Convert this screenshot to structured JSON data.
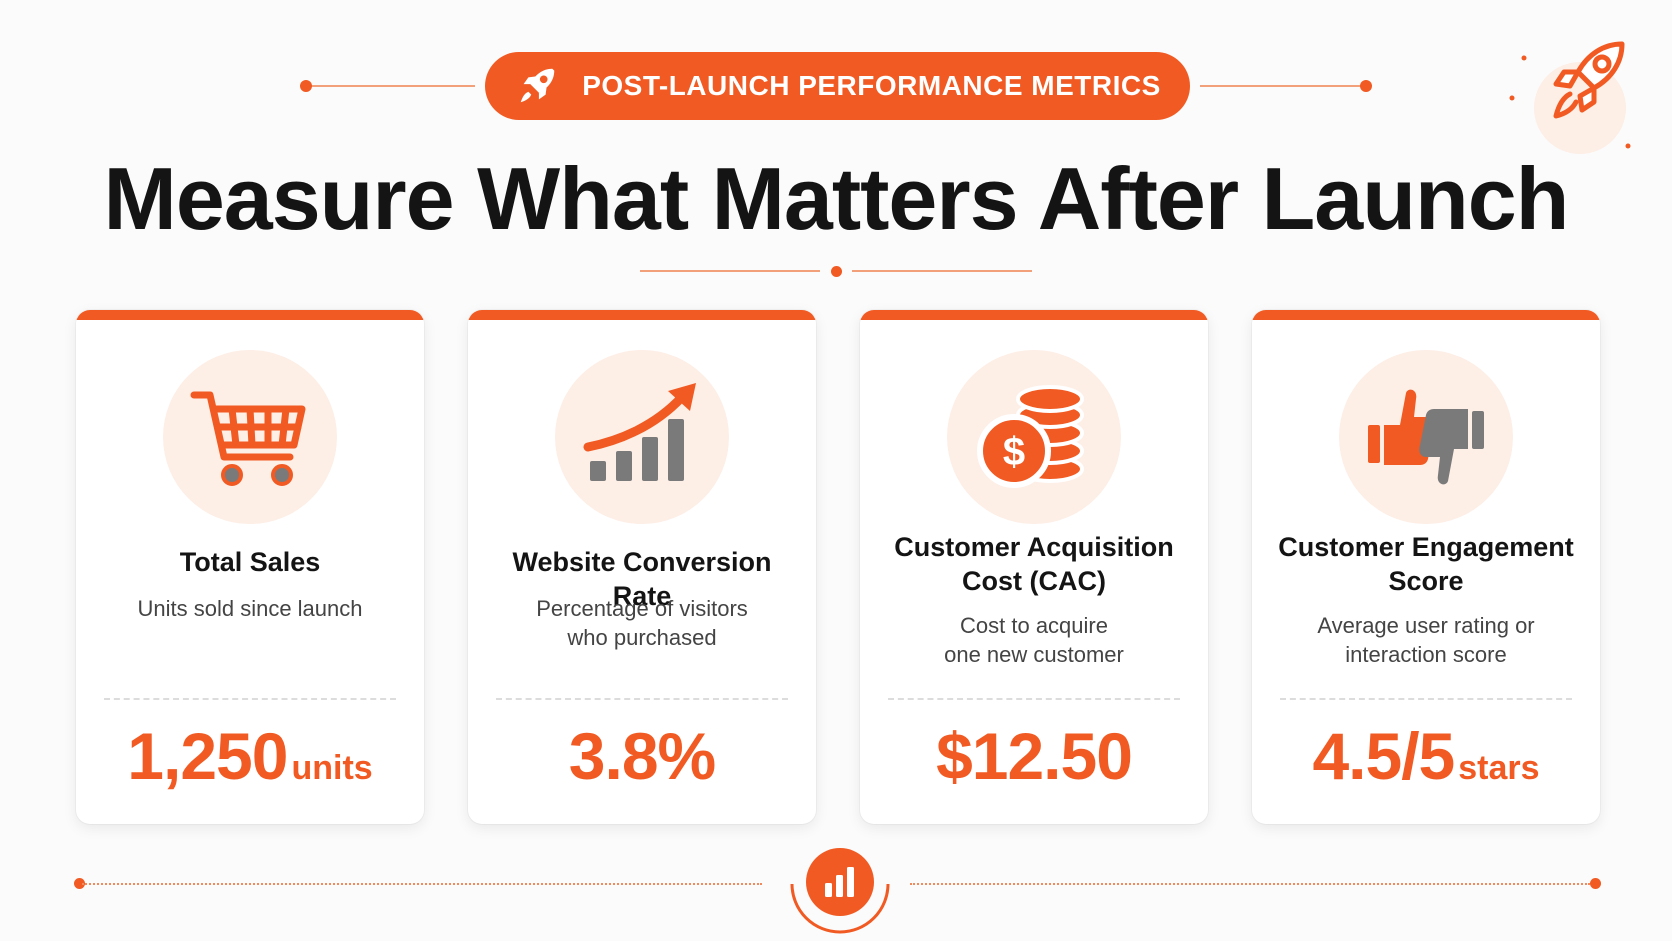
{
  "header": {
    "badge_label": "POST-LAUNCH PERFORMANCE METRICS",
    "title": "Measure What Matters After Launch"
  },
  "colors": {
    "accent": "#f15a22",
    "icon_bg": "#fdeee6",
    "icon_gray": "#7a7a7a",
    "title_text": "#141414"
  },
  "cards": [
    {
      "icon": "shopping-cart-icon",
      "title": "Total Sales",
      "description_lines": [
        "Units sold since launch"
      ],
      "value": "1,250",
      "unit": "units"
    },
    {
      "icon": "growth-chart-icon",
      "title": "Website Conversion Rate",
      "description_lines": [
        "Percentage of visitors",
        "who purchased"
      ],
      "value": "3.8%",
      "unit": ""
    },
    {
      "icon": "coins-dollar-icon",
      "title_lines": [
        "Customer Acquisition",
        "Cost (CAC)"
      ],
      "description_lines": [
        "Cost to acquire",
        "one new customer"
      ],
      "value": "$12.50",
      "unit": ""
    },
    {
      "icon": "thumbs-up-down-icon",
      "title_lines": [
        "Customer Engagement",
        "Score"
      ],
      "description_lines": [
        "Average user rating or",
        "interaction score"
      ],
      "value": "4.5/5",
      "unit": "stars"
    }
  ],
  "decor": {
    "header_icon": "rocket-icon",
    "corner_icon": "rocket-icon",
    "footer_icon": "bar-chart-icon"
  }
}
